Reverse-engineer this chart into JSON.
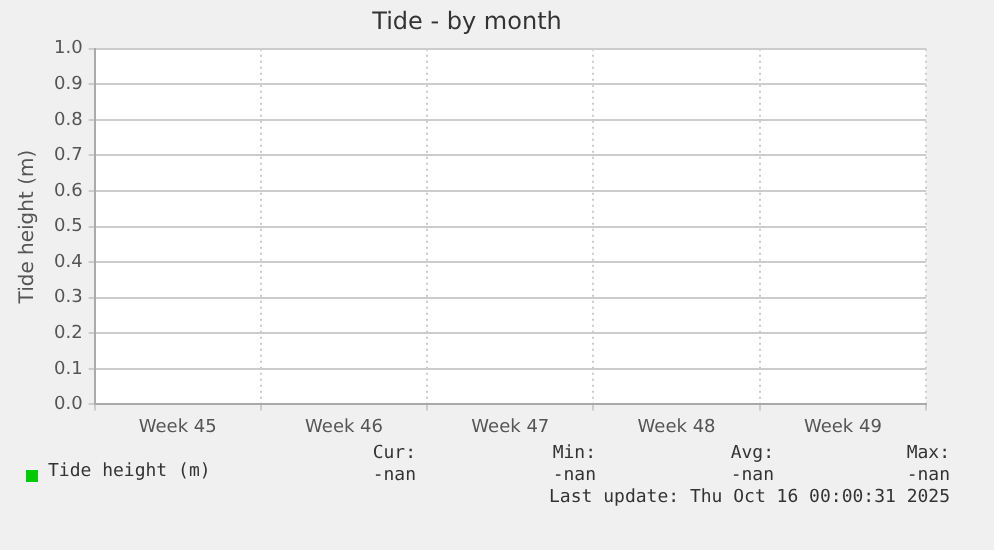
{
  "chart_data": {
    "type": "line",
    "title": "Tide - by month",
    "ylabel": "Tide height (m)",
    "categories": [
      "Week 45",
      "Week 46",
      "Week 47",
      "Week 48",
      "Week 49"
    ],
    "series": [
      {
        "name": "Tide height (m)",
        "color": "#00cc00",
        "values": [
          null,
          null,
          null,
          null,
          null
        ]
      }
    ],
    "ylim": [
      0,
      1
    ],
    "yticks": [
      {
        "value": 0,
        "label": "0.0"
      },
      {
        "value": 0.1,
        "label": "0.1"
      },
      {
        "value": 0.2,
        "label": "0.2"
      },
      {
        "value": 0.3,
        "label": "0.3"
      },
      {
        "value": 0.4,
        "label": "0.4"
      },
      {
        "value": 0.5,
        "label": "0.5"
      },
      {
        "value": 0.6,
        "label": "0.6"
      },
      {
        "value": 0.7,
        "label": "0.7"
      },
      {
        "value": 0.8,
        "label": "0.8"
      },
      {
        "value": 0.9,
        "label": "0.9"
      },
      {
        "value": 1,
        "label": "1.0"
      }
    ],
    "grid": true,
    "legend": "bottom",
    "annotations": [
      "Cur:",
      "-nan",
      "Min:",
      "-nan",
      "Avg:",
      "-nan",
      "Max:",
      "-nan",
      "Last update: Thu Oct 16 00:00:31 2025"
    ]
  }
}
